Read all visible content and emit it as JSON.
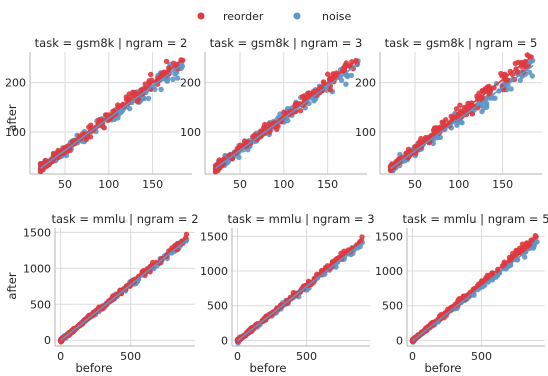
{
  "chart_data": {
    "type": "scatter",
    "layout": "facet-grid",
    "legend": {
      "placement": "top-center",
      "entries": [
        {
          "name": "reorder",
          "color": "#e0393e"
        },
        {
          "name": "noise",
          "color": "#5d96c8"
        }
      ]
    },
    "xlabel": "before",
    "ylabel": "after",
    "grid": true,
    "panels": [
      {
        "title": "task = gsm8k | ngram = 2",
        "xlim": [
          10,
          195
        ],
        "ylim": [
          15,
          262
        ],
        "xticks": [
          50,
          100,
          150
        ],
        "yticks": [
          100,
          200
        ],
        "xrange": [
          22,
          185
        ],
        "series": [
          {
            "name": "reorder",
            "slope": 1.36,
            "intercept": -4,
            "spread": 5
          },
          {
            "name": "noise",
            "slope": 1.3,
            "intercept": -2,
            "spread": 6
          }
        ]
      },
      {
        "title": "task = gsm8k | ngram = 3",
        "xlim": [
          10,
          195
        ],
        "ylim": [
          15,
          262
        ],
        "xticks": [
          50,
          100,
          150
        ],
        "yticks": [
          100,
          200
        ],
        "xrange": [
          22,
          185
        ],
        "series": [
          {
            "name": "reorder",
            "slope": 1.36,
            "intercept": -4,
            "spread": 5
          },
          {
            "name": "noise",
            "slope": 1.3,
            "intercept": -2,
            "spread": 6
          }
        ]
      },
      {
        "title": "task = gsm8k | ngram = 5",
        "xlim": [
          10,
          195
        ],
        "ylim": [
          15,
          262
        ],
        "xticks": [
          50,
          100,
          150
        ],
        "yticks": [
          100,
          200
        ],
        "xrange": [
          22,
          185
        ],
        "series": [
          {
            "name": "reorder",
            "slope": 1.4,
            "intercept": -4,
            "spread": 6
          },
          {
            "name": "noise",
            "slope": 1.28,
            "intercept": -2,
            "spread": 6
          }
        ]
      },
      {
        "title": "task = mmlu | ngram = 2",
        "xlim": [
          -40,
          960
        ],
        "ylim": [
          -80,
          1560
        ],
        "xticks": [
          0,
          500
        ],
        "yticks": [
          0,
          500,
          1000,
          1500
        ],
        "xrange": [
          0,
          905
        ],
        "series": [
          {
            "name": "reorder",
            "slope": 1.58,
            "intercept": -4,
            "spread": 16
          },
          {
            "name": "noise",
            "slope": 1.55,
            "intercept": -4,
            "spread": 18
          }
        ]
      },
      {
        "title": "task = mmlu | ngram = 3",
        "xlim": [
          -40,
          960
        ],
        "ylim": [
          -80,
          1620
        ],
        "xticks": [
          0,
          500
        ],
        "yticks": [
          0,
          500,
          1000,
          1500
        ],
        "xrange": [
          0,
          905
        ],
        "series": [
          {
            "name": "reorder",
            "slope": 1.6,
            "intercept": -4,
            "spread": 16
          },
          {
            "name": "noise",
            "slope": 1.56,
            "intercept": -4,
            "spread": 18
          }
        ]
      },
      {
        "title": "task = mmlu | ngram = 5",
        "xlim": [
          -40,
          960
        ],
        "ylim": [
          -80,
          1620
        ],
        "xticks": [
          0,
          500
        ],
        "yticks": [
          0,
          500,
          1000,
          1500
        ],
        "xrange": [
          0,
          905
        ],
        "series": [
          {
            "name": "reorder",
            "slope": 1.66,
            "intercept": -4,
            "spread": 18
          },
          {
            "name": "noise",
            "slope": 1.56,
            "intercept": -4,
            "spread": 18
          }
        ]
      }
    ]
  }
}
